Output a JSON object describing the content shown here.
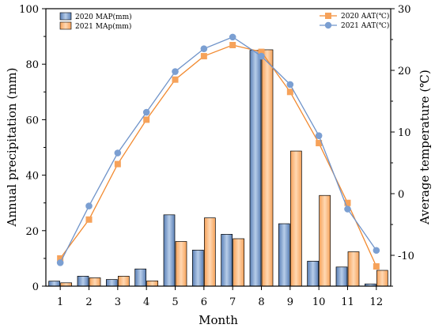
{
  "chart_data": {
    "type": "bar+line",
    "categories": [
      "1",
      "2",
      "3",
      "4",
      "5",
      "6",
      "7",
      "8",
      "9",
      "10",
      "11",
      "12"
    ],
    "xlabel": "Month",
    "ylabel_left": "Annual precipitation (mm)",
    "ylabel_right": "Average temperature (℃)",
    "ylim_left": [
      0,
      100
    ],
    "ylim_right": [
      -15,
      30
    ],
    "yticks_left": [
      "0",
      "20",
      "40",
      "60",
      "80",
      "100"
    ],
    "yticks_right": [
      "-10",
      "0",
      "10",
      "20",
      "30"
    ],
    "bar_series": [
      {
        "name": "2020 MAP(mm)",
        "axis": "left",
        "color": "#6f8fbf",
        "values": [
          1.8,
          3.6,
          2.4,
          6.2,
          25.7,
          13.0,
          18.7,
          85.0,
          22.5,
          9.0,
          6.9,
          0.8
        ]
      },
      {
        "name": "2021 MAp(mm)",
        "axis": "left",
        "color": "#f6a25a",
        "values": [
          1.2,
          3.0,
          3.6,
          1.9,
          16.1,
          24.6,
          17.1,
          85.2,
          48.7,
          32.7,
          12.4,
          5.7
        ]
      }
    ],
    "line_series": [
      {
        "name": "2020 AAT(℃)",
        "axis": "right",
        "color": "#f28a30",
        "marker": "square",
        "values": [
          -10.5,
          -4.2,
          4.8,
          12.0,
          18.5,
          22.3,
          24.1,
          23.0,
          16.5,
          8.2,
          -1.5,
          -11.8
        ]
      },
      {
        "name": "2021 AAT(℃)",
        "axis": "right",
        "color": "#6f93c9",
        "marker": "circle",
        "values": [
          -11.2,
          -2.0,
          6.6,
          13.2,
          19.8,
          23.5,
          25.4,
          22.3,
          17.7,
          9.4,
          -2.5,
          -9.2
        ]
      }
    ],
    "legend_left_position": "top-left",
    "legend_right_position": "top-right",
    "grid": false
  }
}
